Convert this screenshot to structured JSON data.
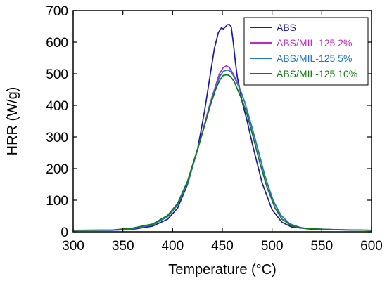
{
  "chart_data": {
    "type": "line",
    "title": "",
    "xlabel": "Temperature (°C)",
    "ylabel": "HRR (W/g)",
    "xlim": [
      300,
      600
    ],
    "ylim": [
      0,
      700
    ],
    "xticks": [
      "300",
      "350",
      "400",
      "450",
      "500",
      "550",
      "600"
    ],
    "yticks": [
      "0",
      "100",
      "200",
      "300",
      "400",
      "500",
      "600",
      "700"
    ],
    "grid": false,
    "legend_position": "top-right",
    "series": [
      {
        "name": "ABS",
        "color": "#1a1aa6",
        "points": [
          [
            300,
            5
          ],
          [
            340,
            5
          ],
          [
            360,
            8
          ],
          [
            380,
            18
          ],
          [
            395,
            40
          ],
          [
            405,
            75
          ],
          [
            415,
            150
          ],
          [
            425,
            260
          ],
          [
            432,
            380
          ],
          [
            438,
            500
          ],
          [
            442,
            580
          ],
          [
            446,
            630
          ],
          [
            449,
            645
          ],
          [
            451,
            642
          ],
          [
            453,
            648
          ],
          [
            455,
            655
          ],
          [
            457,
            656
          ],
          [
            459,
            648
          ],
          [
            461,
            600
          ],
          [
            463,
            540
          ],
          [
            465,
            490
          ],
          [
            467,
            460
          ],
          [
            470,
            410
          ],
          [
            475,
            350
          ],
          [
            480,
            280
          ],
          [
            490,
            155
          ],
          [
            500,
            70
          ],
          [
            510,
            30
          ],
          [
            520,
            15
          ],
          [
            540,
            8
          ],
          [
            570,
            6
          ],
          [
            600,
            5
          ]
        ]
      },
      {
        "name": "ABS/MIL-125 2%",
        "color": "#c428c4",
        "points": [
          [
            300,
            5
          ],
          [
            340,
            5
          ],
          [
            360,
            10
          ],
          [
            380,
            22
          ],
          [
            395,
            48
          ],
          [
            405,
            85
          ],
          [
            415,
            155
          ],
          [
            425,
            260
          ],
          [
            432,
            340
          ],
          [
            438,
            410
          ],
          [
            443,
            460
          ],
          [
            447,
            500
          ],
          [
            451,
            520
          ],
          [
            454,
            525
          ],
          [
            457,
            520
          ],
          [
            460,
            505
          ],
          [
            464,
            480
          ],
          [
            468,
            450
          ],
          [
            472,
            415
          ],
          [
            478,
            350
          ],
          [
            485,
            270
          ],
          [
            492,
            185
          ],
          [
            500,
            105
          ],
          [
            508,
            55
          ],
          [
            518,
            25
          ],
          [
            530,
            12
          ],
          [
            550,
            8
          ],
          [
            575,
            6
          ],
          [
            600,
            5
          ]
        ]
      },
      {
        "name": "ABS/MIL-125 5%",
        "color": "#1e78d2",
        "points": [
          [
            300,
            5
          ],
          [
            340,
            5
          ],
          [
            360,
            10
          ],
          [
            380,
            22
          ],
          [
            395,
            48
          ],
          [
            405,
            85
          ],
          [
            415,
            155
          ],
          [
            425,
            258
          ],
          [
            432,
            335
          ],
          [
            438,
            405
          ],
          [
            443,
            455
          ],
          [
            447,
            490
          ],
          [
            451,
            508
          ],
          [
            455,
            512
          ],
          [
            458,
            508
          ],
          [
            461,
            495
          ],
          [
            465,
            470
          ],
          [
            469,
            440
          ],
          [
            473,
            405
          ],
          [
            479,
            340
          ],
          [
            486,
            258
          ],
          [
            493,
            175
          ],
          [
            501,
            100
          ],
          [
            509,
            52
          ],
          [
            518,
            24
          ],
          [
            530,
            12
          ],
          [
            550,
            8
          ],
          [
            575,
            6
          ],
          [
            600,
            5
          ]
        ]
      },
      {
        "name": "ABS/MIL-125 10%",
        "color": "#117a11",
        "points": [
          [
            300,
            5
          ],
          [
            340,
            6
          ],
          [
            360,
            12
          ],
          [
            380,
            25
          ],
          [
            395,
            52
          ],
          [
            405,
            90
          ],
          [
            415,
            160
          ],
          [
            425,
            262
          ],
          [
            432,
            335
          ],
          [
            438,
            400
          ],
          [
            443,
            448
          ],
          [
            447,
            478
          ],
          [
            451,
            495
          ],
          [
            455,
            497
          ],
          [
            458,
            492
          ],
          [
            462,
            475
          ],
          [
            466,
            445
          ],
          [
            470,
            415
          ],
          [
            475,
            370
          ],
          [
            481,
            300
          ],
          [
            488,
            215
          ],
          [
            495,
            140
          ],
          [
            503,
            75
          ],
          [
            510,
            40
          ],
          [
            520,
            18
          ],
          [
            535,
            10
          ],
          [
            560,
            7
          ],
          [
            600,
            5
          ]
        ]
      }
    ]
  }
}
